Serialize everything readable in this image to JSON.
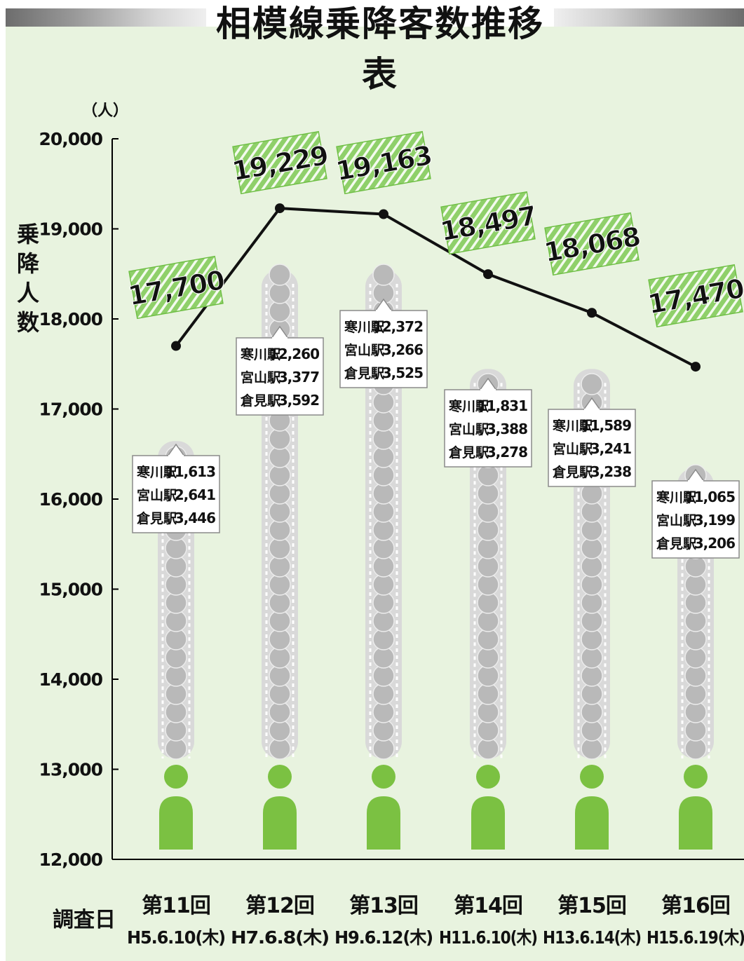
{
  "title": "相模線乗降客数推移表",
  "y_unit": "（人）",
  "y_axis_title": "乗降人数",
  "x_row_label": "調査日",
  "colors": {
    "background": "#e8f3df",
    "figure_gray": "#b9b9b9",
    "figure_green": "#7bc142",
    "label_green": "#8fd06a",
    "line": "#111111"
  },
  "chart_data": {
    "type": "line",
    "title": "相模線乗降客数推移表",
    "ylabel": "乗降人数",
    "ylim": [
      12000,
      20000
    ],
    "yticks": [
      12000,
      13000,
      14000,
      15000,
      16000,
      17000,
      18000,
      19000,
      20000
    ],
    "ytick_labels": [
      "12,000",
      "13,000",
      "14,000",
      "15,000",
      "16,000",
      "17,000",
      "18,000",
      "19,000",
      "20,000"
    ],
    "categories": [
      {
        "round": "第11回",
        "date": "H5.6.10(木)"
      },
      {
        "round": "第12回",
        "date": "H7.6.8(木)"
      },
      {
        "round": "第13回",
        "date": "H9.6.12(木)"
      },
      {
        "round": "第14回",
        "date": "H11.6.10(木)"
      },
      {
        "round": "第15回",
        "date": "H13.6.14(木)"
      },
      {
        "round": "第16回",
        "date": "H15.6.19(木)"
      }
    ],
    "values": [
      17700,
      19229,
      19163,
      18497,
      18068,
      17470
    ],
    "value_labels": [
      "17,700",
      "19,229",
      "19,163",
      "18,497",
      "18,068",
      "17,470"
    ],
    "column_tops": [
      16800,
      18700,
      18700,
      17600,
      17600,
      16500
    ],
    "station_breakdown": [
      [
        {
          "station": "寒川駅",
          "count": "11,613"
        },
        {
          "station": "宮山駅",
          "count": "2,641"
        },
        {
          "station": "倉見駅",
          "count": "3,446"
        }
      ],
      [
        {
          "station": "寒川駅",
          "count": "12,260"
        },
        {
          "station": "宮山駅",
          "count": "3,377"
        },
        {
          "station": "倉見駅",
          "count": "3,592"
        }
      ],
      [
        {
          "station": "寒川駅",
          "count": "12,372"
        },
        {
          "station": "宮山駅",
          "count": "3,266"
        },
        {
          "station": "倉見駅",
          "count": "3,525"
        }
      ],
      [
        {
          "station": "寒川駅",
          "count": "11,831"
        },
        {
          "station": "宮山駅",
          "count": "3,388"
        },
        {
          "station": "倉見駅",
          "count": "3,278"
        }
      ],
      [
        {
          "station": "寒川駅",
          "count": "11,589"
        },
        {
          "station": "宮山駅",
          "count": "3,241"
        },
        {
          "station": "倉見駅",
          "count": "3,238"
        }
      ],
      [
        {
          "station": "寒川駅",
          "count": "11,065"
        },
        {
          "station": "宮山駅",
          "count": "3,199"
        },
        {
          "station": "倉見駅",
          "count": "3,206"
        }
      ]
    ]
  }
}
